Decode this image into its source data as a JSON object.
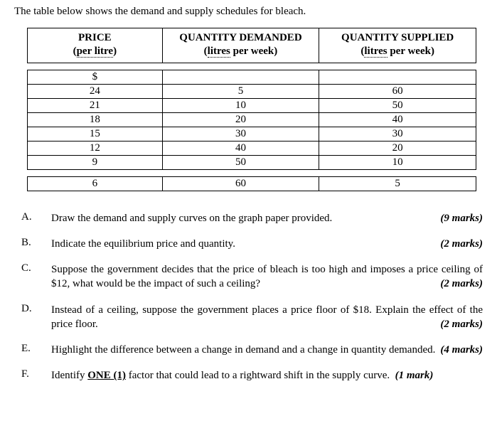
{
  "intro": "The table below shows the demand and supply schedules for bleach.",
  "table": {
    "headers": {
      "price_main": "PRICE",
      "price_sub_left": "(",
      "price_sub_u": "per litre",
      "price_sub_right": ")",
      "qd_main": "QUANTITY DEMANDED",
      "qd_sub_left": "(",
      "qd_sub_u": "litres",
      "qd_sub_right": " per week)",
      "qs_main": "QUANTITY SUPPLIED",
      "qs_sub_left": "(",
      "qs_sub_u": "litres",
      "qs_sub_right": " per week)"
    },
    "currency": "$",
    "rows": [
      {
        "p": "24",
        "qd": "5",
        "qs": "60"
      },
      {
        "p": "21",
        "qd": "10",
        "qs": "50"
      },
      {
        "p": "18",
        "qd": "20",
        "qs": "40"
      },
      {
        "p": "15",
        "qd": "30",
        "qs": "30"
      },
      {
        "p": "12",
        "qd": "40",
        "qs": "20"
      },
      {
        "p": "9",
        "qd": "50",
        "qs": "10"
      }
    ],
    "last": {
      "p": "6",
      "qd": "60",
      "qs": "5"
    }
  },
  "questions": {
    "A": {
      "label": "A.",
      "text": "Draw the demand and supply curves on the graph paper provided.",
      "marks": "(9 marks)"
    },
    "B": {
      "label": "B.",
      "text": "Indicate the equilibrium price and quantity.",
      "marks": "(2 marks)"
    },
    "C": {
      "label": "C.",
      "text": "Suppose the government decides that the price of bleach is too high and imposes a price ceiling of $12, what would be the impact of such a ceiling?",
      "marks": "(2 marks)"
    },
    "D": {
      "label": "D.",
      "text": "Instead of a ceiling, suppose the government places a price floor of $18. Explain the effect of the price floor.",
      "marks": "(2 marks)"
    },
    "E": {
      "label": "E.",
      "text": "Highlight the difference between a change in demand and a change in quantity demanded.",
      "marks": "(4 marks)"
    },
    "F": {
      "label": "F.",
      "pre": "Identify ",
      "one": "ONE (1)",
      "post": " factor that could lead to a rightward shift in the supply curve.",
      "marks": "(1 mark)"
    }
  }
}
